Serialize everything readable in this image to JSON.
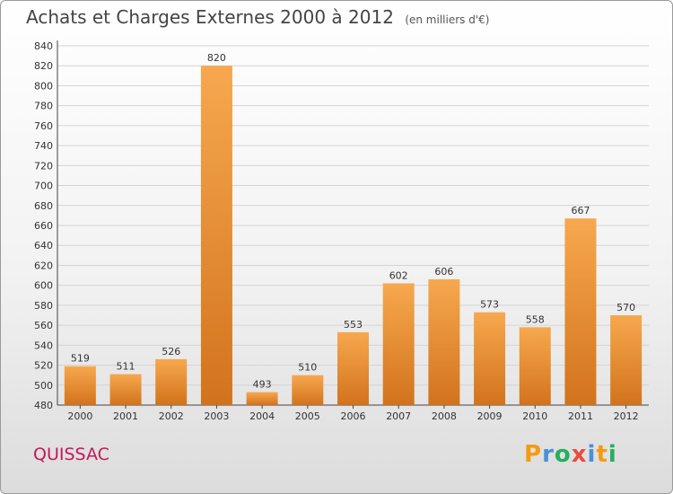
{
  "title": "Achats et Charges Externes 2000 à 2012",
  "unit_label": "(en milliers d'€)",
  "commune": "QUISSAC",
  "logo": {
    "text": "Proxiti",
    "letters": [
      "P",
      "r",
      "o",
      "x",
      "i",
      "t",
      "i"
    ],
    "colors": [
      "#f39c12",
      "#4a90d9",
      "#27ae60",
      "#e74c3c",
      "#4a90d9",
      "#f39c12",
      "#27ae60"
    ]
  },
  "colors": {
    "bar_light": "#f7a84e",
    "bar_dark": "#d2731c",
    "commune": "#c2185b"
  },
  "chart_data": {
    "type": "bar",
    "title": "Achats et Charges Externes 2000 à 2012",
    "subtitle": "(en milliers d'€)",
    "categories": [
      "2000",
      "2001",
      "2002",
      "2003",
      "2004",
      "2005",
      "2006",
      "2007",
      "2008",
      "2009",
      "2010",
      "2011",
      "2012"
    ],
    "values": [
      519,
      511,
      526,
      820,
      493,
      510,
      553,
      602,
      606,
      573,
      558,
      667,
      570
    ],
    "ylim": [
      480,
      840
    ],
    "yticks": [
      480,
      500,
      520,
      540,
      560,
      580,
      600,
      620,
      640,
      660,
      680,
      700,
      720,
      740,
      760,
      780,
      800,
      820,
      840
    ],
    "grid": true
  }
}
